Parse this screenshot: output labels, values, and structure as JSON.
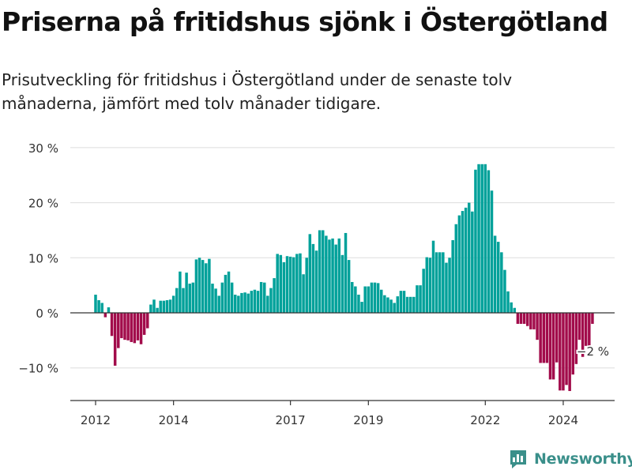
{
  "title": "Priserna på fritidshus sjönk i Östergötland",
  "subtitle": "Prisutveckling för fritidshus i Östergötland under de senaste tolv månaderna, jämfört med tolv månader tidigare.",
  "brand": {
    "name": "Newsworthy",
    "icon": "newsworthy-bar-chart-icon",
    "color": "#3a8f8a"
  },
  "colors": {
    "positive": "#00a19a",
    "negative": "#a20c4b",
    "grid": "#dddddd",
    "axis": "#333333"
  },
  "chart_data": {
    "type": "bar",
    "xlabel": "",
    "ylabel": "",
    "ylim": [
      -16,
      31
    ],
    "y_ticks": [
      -10,
      0,
      10,
      20,
      30
    ],
    "y_tick_labels": [
      "−10 %",
      "0 %",
      "10 %",
      "20 %",
      "30 %"
    ],
    "x_ticks": [
      2012,
      2014,
      2017,
      2019,
      2022,
      2024
    ],
    "x_tick_labels": [
      "2012",
      "2014",
      "2017",
      "2019",
      "2022",
      "2024"
    ],
    "x_unit": "year (monthly bars)",
    "grid": true,
    "x_start": 2012.0,
    "x_step": 0.08333,
    "values": [
      3.3,
      2.3,
      1.8,
      -0.8,
      1.0,
      -4.2,
      -9.6,
      -6.4,
      -4.6,
      -4.9,
      -5.0,
      -5.3,
      -5.5,
      -5.0,
      -5.7,
      -4.0,
      -2.8,
      1.5,
      2.4,
      0.9,
      2.2,
      2.2,
      2.3,
      2.4,
      3.1,
      4.5,
      7.5,
      4.5,
      7.3,
      5.3,
      5.5,
      9.7,
      10.0,
      9.6,
      9.0,
      9.8,
      5.3,
      4.4,
      3.1,
      5.5,
      6.9,
      7.5,
      5.5,
      3.3,
      3.1,
      3.6,
      3.7,
      3.5,
      4.0,
      4.2,
      4.0,
      5.6,
      5.5,
      3.1,
      4.5,
      6.3,
      10.7,
      10.5,
      9.2,
      10.3,
      10.2,
      10.1,
      10.7,
      10.8,
      7.0,
      10.0,
      14.3,
      12.5,
      11.3,
      15.0,
      15.0,
      14.0,
      13.3,
      13.5,
      12.4,
      13.5,
      10.5,
      14.5,
      9.6,
      5.6,
      4.8,
      3.3,
      2.0,
      4.8,
      4.8,
      5.5,
      5.5,
      5.4,
      4.2,
      3.2,
      2.8,
      2.4,
      1.8,
      3.0,
      4.0,
      4.0,
      2.9,
      2.9,
      2.9,
      5.0,
      5.0,
      8.0,
      10.1,
      10.0,
      13.1,
      11.0,
      11.0,
      11.0,
      9.1,
      10.0,
      13.2,
      16.1,
      17.7,
      18.5,
      19.1,
      20.0,
      18.4,
      26.0,
      27.0,
      27.0,
      27.0,
      25.9,
      22.2,
      14.0,
      12.9,
      11.0,
      7.8,
      3.9,
      1.9,
      0.9,
      -2.0,
      -2.0,
      -2.0,
      -2.4,
      -3.0,
      -3.0,
      -4.9,
      -9.1,
      -9.1,
      -9.1,
      -12.1,
      -12.1,
      -9.0,
      -14.1,
      -14.1,
      -13.1,
      -14.2,
      -11.2,
      -9.3,
      -4.9,
      -8.0,
      -6.0,
      -6.0,
      -2.0
    ],
    "annotations": [
      {
        "label": "−2 %",
        "value": -2.0,
        "position": "last-bar"
      }
    ]
  }
}
